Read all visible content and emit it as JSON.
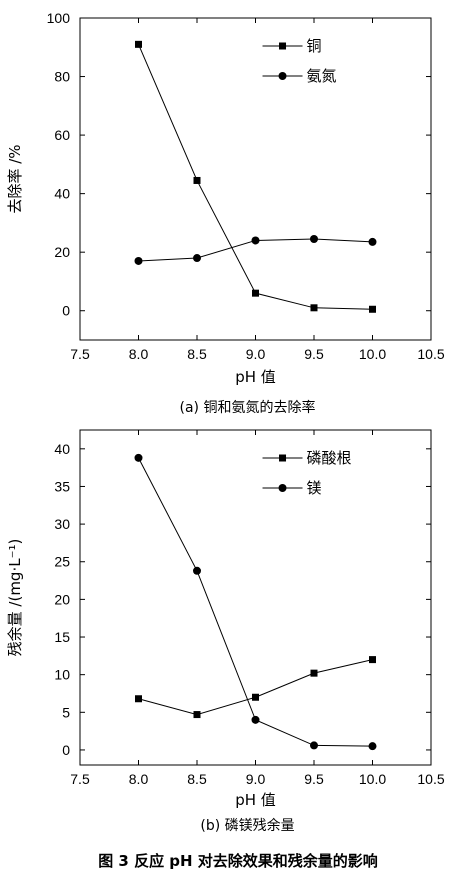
{
  "figure_title": "图 3   反应 pH 对去除效果和残余量的影响",
  "chart_data": [
    {
      "type": "line",
      "caption": "(a) 铜和氨氮的去除率",
      "xlabel": "pH 值",
      "ylabel": "去除率 /%",
      "xlim": [
        7.5,
        10.5
      ],
      "ylim": [
        -10,
        100
      ],
      "xticks": [
        "7.5",
        "8.0",
        "8.5",
        "9.0",
        "9.5",
        "10.0",
        "10.5"
      ],
      "yticks": [
        "0",
        "20",
        "40",
        "60",
        "80",
        "100"
      ],
      "legend_position": "top-right",
      "x": [
        8.0,
        8.5,
        9.0,
        9.5,
        10.0
      ],
      "series": [
        {
          "name": "铜",
          "marker": "square",
          "values": [
            91,
            44.5,
            6,
            1,
            0.5
          ]
        },
        {
          "name": "氨氮",
          "marker": "circle",
          "values": [
            17,
            18,
            24,
            24.5,
            23.5
          ]
        }
      ]
    },
    {
      "type": "line",
      "caption": "(b) 磷镁残余量",
      "xlabel": "pH 值",
      "ylabel": "残余量 /(mg·L⁻¹)",
      "xlim": [
        7.5,
        10.5
      ],
      "ylim": [
        -2,
        42.5
      ],
      "xticks": [
        "7.5",
        "8.0",
        "8.5",
        "9.0",
        "9.5",
        "10.0",
        "10.5"
      ],
      "yticks": [
        "0",
        "5",
        "10",
        "15",
        "20",
        "25",
        "30",
        "35",
        "40"
      ],
      "legend_position": "top-right",
      "x": [
        8.0,
        8.5,
        9.0,
        9.5,
        10.0
      ],
      "series": [
        {
          "name": "磷酸根",
          "marker": "square",
          "values": [
            6.8,
            4.7,
            7,
            10.2,
            12
          ]
        },
        {
          "name": "镁",
          "marker": "circle",
          "values": [
            38.8,
            23.8,
            4,
            0.6,
            0.5
          ]
        }
      ]
    }
  ]
}
